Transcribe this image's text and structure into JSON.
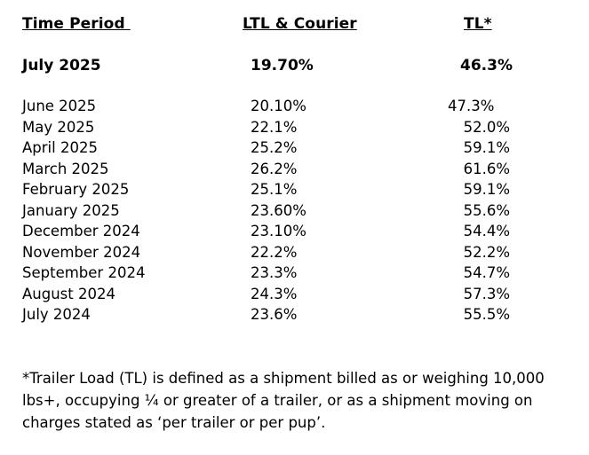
{
  "headers": {
    "period": "Time Period ",
    "ltl": "LTL & Courier",
    "tl": "TL*"
  },
  "current": {
    "period": "July 2025",
    "ltl": "19.70%",
    "tl": "46.3%"
  },
  "rows": [
    {
      "period": "June 2025",
      "ltl": "20.10%",
      "tl": "47.3%"
    },
    {
      "period": "May 2025",
      "ltl": "22.1%",
      "tl": "52.0%"
    },
    {
      "period": "April 2025",
      "ltl": "25.2%",
      "tl": "59.1%"
    },
    {
      "period": "March 2025",
      "ltl": "26.2%",
      "tl": "61.6%"
    },
    {
      "period": "February 2025",
      "ltl": "25.1%",
      "tl": "59.1%"
    },
    {
      "period": "January 2025",
      "ltl": "23.60%",
      "tl": "55.6%"
    },
    {
      "period": "December 2024",
      "ltl": "23.10%",
      "tl": "54.4%"
    },
    {
      "period": "November 2024",
      "ltl": "22.2%",
      "tl": "52.2%"
    },
    {
      "period": "September 2024",
      "ltl": "23.3%",
      "tl": "54.7%"
    },
    {
      "period": "August 2024",
      "ltl": "24.3%",
      "tl": "57.3%"
    },
    {
      "period": "July 2024",
      "ltl": "23.6%",
      "tl": "55.5%"
    }
  ],
  "footnote": "*Trailer Load (TL) is defined as a shipment billed as or weighing 10,000 lbs+, occupying ¼ or greater of a trailer, or as a shipment moving on charges stated as ‘per trailer or per pup’."
}
